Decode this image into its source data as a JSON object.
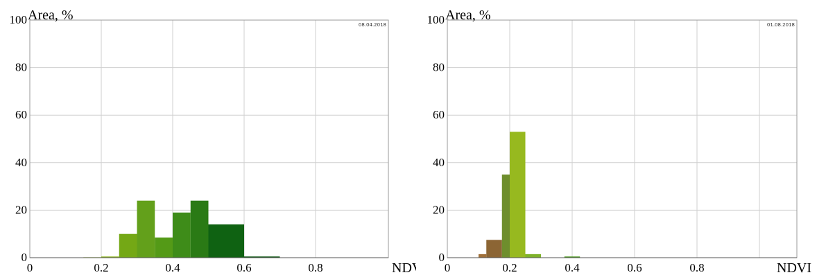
{
  "chart_data": [
    {
      "type": "bar",
      "annotation": "08.04.2018",
      "xlabel": "NDVI",
      "ylabel": "Area, %",
      "xlim": [
        0,
        0.9
      ],
      "ylim": [
        0,
        100
      ],
      "x_ticks": [
        "0",
        "0.2",
        "0.4",
        "0.6",
        "0.8"
      ],
      "y_ticks": [
        "0",
        "20",
        "40",
        "60",
        "80",
        "100"
      ],
      "grid": true,
      "bins": [
        {
          "x0": 0.15,
          "x1": 0.2,
          "value": 0.2,
          "color": "#9bbf2a"
        },
        {
          "x0": 0.2,
          "x1": 0.25,
          "value": 0.5,
          "color": "#8db523"
        },
        {
          "x0": 0.25,
          "x1": 0.3,
          "value": 10,
          "color": "#74a815"
        },
        {
          "x0": 0.3,
          "x1": 0.35,
          "value": 24,
          "color": "#63a01b"
        },
        {
          "x0": 0.35,
          "x1": 0.4,
          "value": 8.5,
          "color": "#549a17"
        },
        {
          "x0": 0.4,
          "x1": 0.45,
          "value": 19,
          "color": "#3e8c19"
        },
        {
          "x0": 0.45,
          "x1": 0.5,
          "value": 24,
          "color": "#2a7a15"
        },
        {
          "x0": 0.5,
          "x1": 0.6,
          "value": 14,
          "color": "#0f6212"
        },
        {
          "x0": 0.6,
          "x1": 0.7,
          "value": 0.5,
          "color": "#0b5510"
        }
      ]
    },
    {
      "type": "bar",
      "annotation": "01.08.2018",
      "xlabel": "NDVI",
      "ylabel": "Area, %",
      "xlim": [
        0,
        1.0
      ],
      "ylim": [
        0,
        100
      ],
      "x_ticks": [
        "0",
        "0.2",
        "0.4",
        "0.6",
        "0.8"
      ],
      "y_ticks": [
        "0",
        "20",
        "40",
        "60",
        "80",
        "100"
      ],
      "grid": true,
      "bins": [
        {
          "x0": 0.1,
          "x1": 0.125,
          "value": 1.5,
          "color": "#a0703a"
        },
        {
          "x0": 0.125,
          "x1": 0.175,
          "value": 7.5,
          "color": "#8c6534"
        },
        {
          "x0": 0.175,
          "x1": 0.2,
          "value": 35,
          "color": "#6e8e2d"
        },
        {
          "x0": 0.2,
          "x1": 0.25,
          "value": 53,
          "color": "#97b91f"
        },
        {
          "x0": 0.25,
          "x1": 0.3,
          "value": 1.5,
          "color": "#7fb22a"
        },
        {
          "x0": 0.375,
          "x1": 0.425,
          "value": 0.5,
          "color": "#4d9a22"
        }
      ]
    }
  ]
}
